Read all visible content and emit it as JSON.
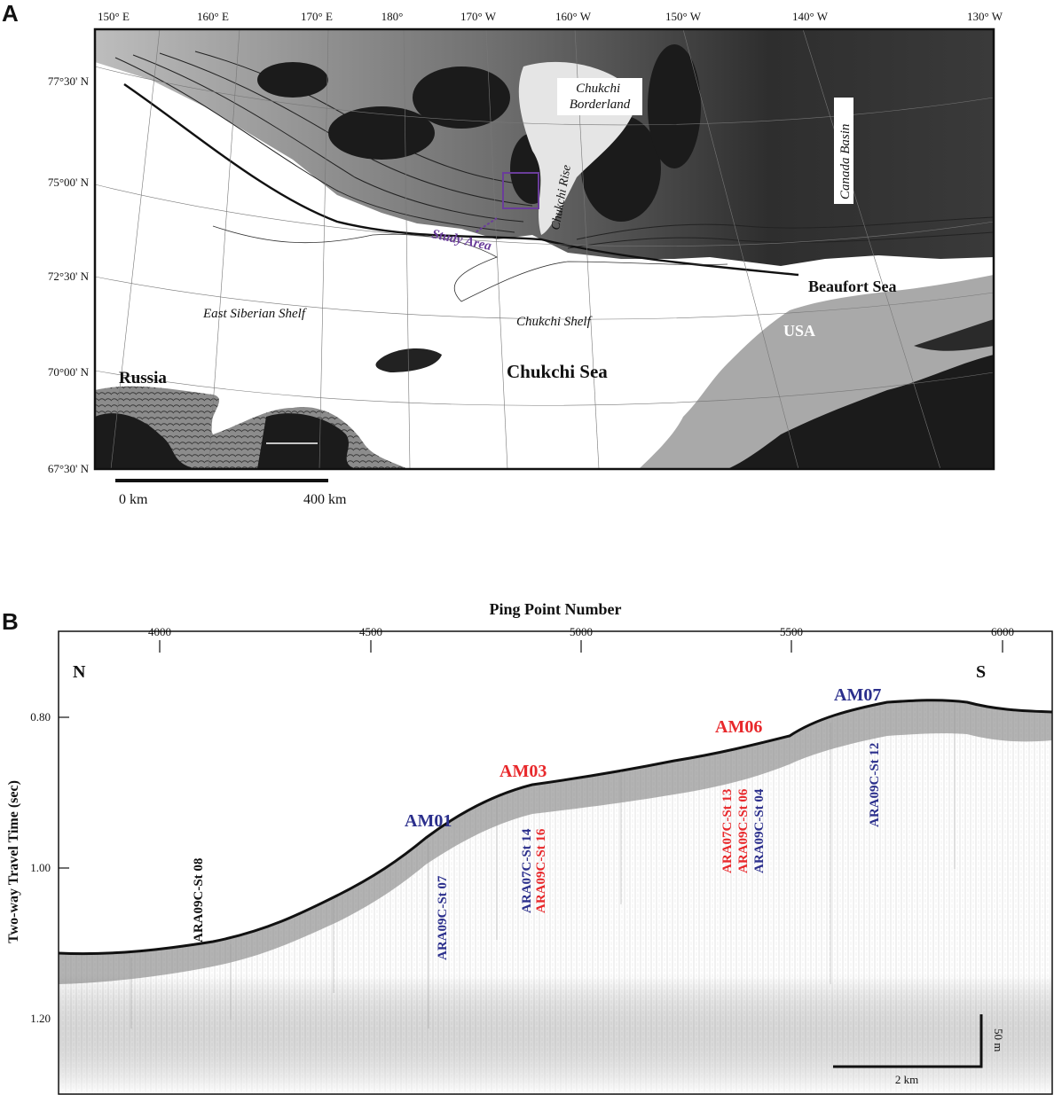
{
  "panel_a": {
    "letter": "A",
    "lon_labels": [
      "150° E",
      "160° E",
      "170° E",
      "180°",
      "170° W",
      "160° W",
      "150° W",
      "140° W",
      "130° W"
    ],
    "lat_labels": [
      "77°30' N",
      "75°00' N",
      "72°30' N",
      "70°00' N",
      "67°30' N"
    ],
    "places": {
      "chukchi_borderland": [
        "Chukchi",
        "Borderland"
      ],
      "chukchi_rise": "Chukchi Rise",
      "canada_basin": "Canada Basin",
      "study_area": "Study Area",
      "beaufort_sea": "Beaufort Sea",
      "usa": "USA",
      "east_siberian_shelf": "East Siberian Shelf",
      "chukchi_shelf": "Chukchi Shelf",
      "chukchi_sea": "Chukchi Sea",
      "russia": "Russia"
    },
    "scale_bar": {
      "start": "0 km",
      "end": "400 km"
    },
    "colors": {
      "land": "#1b1b1b",
      "land_relief": "#8a8a8a",
      "deep_basin": "#2c2c2c",
      "shelf": "#ffffff",
      "study_box": "#6a3d9a"
    }
  },
  "panel_b": {
    "letter": "B",
    "x_axis_title": "Ping Point Number",
    "x_ticks": [
      "4000",
      "4500",
      "5000",
      "5500",
      "6000"
    ],
    "y_axis_title": "Two-way Travel Time (sec)",
    "y_ticks": [
      "0.80",
      "1.00",
      "1.20"
    ],
    "north_label": "N",
    "south_label": "S",
    "vertical_scale": "50 m",
    "horizontal_scale": "2 km",
    "sites": {
      "am01": "AM01",
      "am03": "AM03",
      "am06": "AM06",
      "am07": "AM07"
    },
    "stations": {
      "st08": "ARA09C-St 08",
      "st07": "ARA09C-St 07",
      "st14": "ARA07C-St 14",
      "st16": "ARA09C-St 16",
      "st13": "ARA07C-St 13",
      "st06": "ARA09C-St 06",
      "st04": "ARA09C-St 04",
      "st12": "ARA09C-St 12"
    },
    "colors": {
      "blue": "#2b2f8c",
      "red": "#e8282b",
      "black": "#111111"
    }
  }
}
